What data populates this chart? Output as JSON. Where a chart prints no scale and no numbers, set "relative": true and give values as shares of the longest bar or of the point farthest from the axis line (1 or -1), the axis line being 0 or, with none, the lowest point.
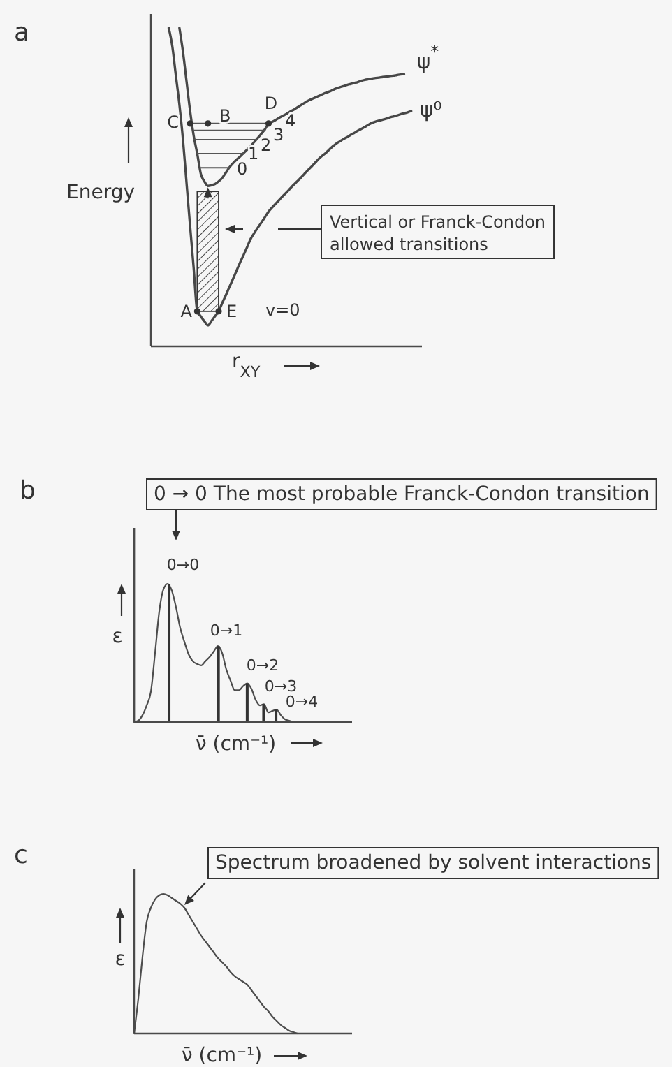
{
  "chart_data": [
    {
      "type": "line",
      "title": "a",
      "xlabel": "r$_{XY}$",
      "ylabel": "Energy",
      "relative": true,
      "categories": [
        null,
        null,
        null,
        null,
        null,
        null,
        null,
        null,
        null,
        null,
        null,
        null,
        null,
        null,
        null,
        null,
        null,
        null,
        null,
        null,
        null,
        null,
        null,
        null,
        null,
        null,
        null,
        null,
        null,
        null,
        null,
        null,
        null,
        null,
        null,
        null,
        null,
        null,
        null,
        null,
        null,
        null,
        null,
        null,
        null,
        null,
        null,
        null,
        null,
        null,
        null,
        null,
        null,
        null,
        null,
        null,
        null,
        null,
        null,
        null,
        null,
        null,
        null,
        null,
        null,
        null,
        null,
        null,
        null,
        null,
        null,
        null,
        null,
        null,
        null,
        null,
        null
      ],
      "series": [
        {
          "name": "ψ$^{*}$",
          "color": "#474747",
          "values": [
            null,
            null,
            null,
            null,
            null,
            null,
            null,
            null,
            1,
            0.925,
            0.832,
            0.739,
            0.662,
            0.605,
            0.542,
            0.518,
            0.504,
            0.506,
            0.51,
            0.518,
            0.529,
            0.545,
            0.562,
            0.575,
            0.586,
            0.596,
            0.607,
            0.618,
            0.629,
            0.642,
            0.655,
            0.668,
            0.682,
            0.7,
            0.705,
            0.711,
            0.718,
            0.724,
            0.73,
            0.737,
            0.743,
            0.75,
            0.757,
            0.764,
            0.771,
            0.776,
            0.781,
            0.786,
            0.791,
            0.796,
            0.8,
            0.805,
            0.81,
            0.814,
            0.817,
            0.821,
            0.824,
            0.827,
            0.83,
            0.834,
            0.837,
            0.839,
            0.841,
            0.843,
            0.844,
            0.846,
            0.847,
            0.849,
            0.85,
            0.852,
            0.854,
            0.855,
            null,
            null,
            null,
            null,
            null
          ]
        },
        {
          "name": "ψ⁰",
          "color": "#474747",
          "values": [
            null,
            null,
            null,
            null,
            null,
            1,
            0.943,
            0.851,
            0.759,
            0.649,
            0.513,
            0.377,
            0.246,
            0.11,
            0.094,
            0.079,
            0.066,
            0.08,
            0.095,
            0.11,
            0.136,
            0.16,
            0.186,
            0.211,
            0.237,
            0.263,
            0.287,
            0.312,
            0.338,
            0.356,
            0.373,
            0.389,
            0.406,
            0.423,
            0.436,
            0.448,
            0.46,
            0.472,
            0.483,
            0.495,
            0.507,
            0.518,
            0.529,
            0.541,
            0.553,
            0.564,
            0.576,
            0.588,
            0.598,
            0.607,
            0.618,
            0.628,
            0.637,
            0.644,
            0.651,
            0.657,
            0.664,
            0.67,
            0.677,
            0.683,
            0.689,
            0.696,
            0.702,
            0.706,
            0.709,
            0.712,
            0.715,
            0.719,
            0.722,
            0.725,
            0.729,
            0.732,
            0.735,
            0.739,
            null,
            null,
            null
          ]
        },
        {
          "color": "#555555",
          "values": [
            null,
            null,
            null,
            null,
            null,
            null,
            null,
            null,
            null,
            null,
            null,
            null,
            null,
            null,
            0.561,
            0.561,
            0.561,
            0.561,
            0.561,
            0.561,
            0.561,
            0.561,
            0.561,
            null,
            null,
            null,
            null,
            null,
            null,
            null,
            null,
            null,
            null,
            null,
            null,
            null,
            null,
            null,
            null,
            null,
            null,
            null,
            null,
            null,
            null,
            null,
            null,
            null,
            null,
            null,
            null,
            null,
            null,
            null,
            null,
            null,
            null,
            null,
            null,
            null,
            null,
            null,
            null,
            null,
            null,
            null,
            null,
            null,
            null,
            null,
            null,
            null,
            null,
            null,
            null,
            null,
            null
          ]
        },
        {
          "color": "#555555",
          "values": [
            null,
            null,
            null,
            null,
            null,
            null,
            null,
            null,
            null,
            null,
            null,
            null,
            null,
            0.605,
            0.605,
            0.605,
            0.605,
            0.605,
            0.605,
            0.605,
            0.605,
            0.605,
            0.605,
            0.605,
            0.605,
            0.605,
            0.605,
            null,
            null,
            null,
            null,
            null,
            null,
            null,
            null,
            null,
            null,
            null,
            null,
            null,
            null,
            null,
            null,
            null,
            null,
            null,
            null,
            null,
            null,
            null,
            null,
            null,
            null,
            null,
            null,
            null,
            null,
            null,
            null,
            null,
            null,
            null,
            null,
            null,
            null,
            null,
            null,
            null,
            null,
            null,
            null,
            null,
            null,
            null,
            null,
            null,
            null
          ]
        },
        {
          "color": "#555555",
          "values": [
            null,
            null,
            null,
            null,
            null,
            null,
            null,
            null,
            null,
            null,
            null,
            null,
            0.649,
            0.649,
            0.649,
            0.649,
            0.649,
            0.649,
            0.649,
            0.649,
            0.649,
            0.649,
            0.649,
            0.649,
            0.649,
            0.649,
            0.649,
            0.649,
            0.649,
            0.649,
            0.649,
            null,
            null,
            null,
            null,
            null,
            null,
            null,
            null,
            null,
            null,
            null,
            null,
            null,
            null,
            null,
            null,
            null,
            null,
            null,
            null,
            null,
            null,
            null,
            null,
            null,
            null,
            null,
            null,
            null,
            null,
            null,
            null,
            null,
            null,
            null,
            null,
            null,
            null,
            null,
            null,
            null,
            null,
            null,
            null,
            null,
            null
          ]
        },
        {
          "color": "#555555",
          "values": [
            null,
            null,
            null,
            null,
            null,
            null,
            null,
            null,
            null,
            null,
            null,
            null,
            0.678,
            0.678,
            0.678,
            0.678,
            0.678,
            0.678,
            0.678,
            0.678,
            0.678,
            0.678,
            0.678,
            0.678,
            0.678,
            0.678,
            0.678,
            0.678,
            0.678,
            0.678,
            0.678,
            0.678,
            0.678,
            null,
            null,
            null,
            null,
            null,
            null,
            null,
            null,
            null,
            null,
            null,
            null,
            null,
            null,
            null,
            null,
            null,
            null,
            null,
            null,
            null,
            null,
            null,
            null,
            null,
            null,
            null,
            null,
            null,
            null,
            null,
            null,
            null,
            null,
            null,
            null,
            null,
            null,
            null,
            null,
            null,
            null,
            null,
            null
          ]
        },
        {
          "color": "#555555",
          "values": [
            null,
            null,
            null,
            null,
            null,
            null,
            null,
            null,
            null,
            null,
            null,
            0.7,
            0.7,
            0.7,
            0.7,
            0.7,
            0.7,
            0.7,
            0.7,
            0.7,
            0.7,
            0.7,
            0.7,
            0.7,
            0.7,
            0.7,
            0.7,
            0.7,
            0.7,
            0.7,
            0.7,
            0.7,
            0.7,
            0.7,
            null,
            null,
            null,
            null,
            null,
            null,
            null,
            null,
            null,
            null,
            null,
            null,
            null,
            null,
            null,
            null,
            null,
            null,
            null,
            null,
            null,
            null,
            null,
            null,
            null,
            null,
            null,
            null,
            null,
            null,
            null,
            null,
            null,
            null,
            null,
            null,
            null,
            null,
            null,
            null,
            null,
            null,
            null
          ]
        },
        {
          "marker": "circle",
          "color": "#333333",
          "values": [
            null,
            null,
            null,
            null,
            null,
            null,
            null,
            null,
            null,
            null,
            null,
            0.7,
            null,
            0.11,
            null,
            null,
            0.7,
            null,
            null,
            0.11,
            null,
            null,
            null,
            null,
            null,
            null,
            null,
            null,
            null,
            null,
            null,
            null,
            null,
            0.7,
            null,
            null,
            null,
            null,
            null,
            null,
            null,
            null,
            null,
            null,
            null,
            null,
            null,
            null,
            null,
            null,
            null,
            null,
            null,
            null,
            null,
            null,
            null,
            null,
            null,
            null,
            null,
            null,
            null,
            null,
            null,
            null,
            null,
            null,
            null,
            null,
            null,
            null,
            null,
            null,
            null,
            null,
            null
          ]
        }
      ],
      "annotations": [
        "Vertical or Franck-Condon allowed transitions",
        "v=0",
        "C",
        "A",
        "B",
        "E",
        "D",
        "0",
        "1",
        "2",
        "3",
        "4"
      ]
    },
    {
      "type": "line",
      "title": "b",
      "xlabel": "ν̄ (cm⁻¹)",
      "ylabel": "ε",
      "relative": true,
      "categories": [
        null,
        null,
        null,
        null,
        null,
        null,
        null,
        null,
        null,
        null,
        null,
        null,
        null,
        null,
        null,
        null,
        null,
        null,
        null,
        null,
        null,
        null,
        null,
        null,
        null,
        null,
        null,
        null,
        null,
        null,
        null,
        null,
        null,
        null,
        null,
        null,
        null,
        null,
        null,
        null,
        null,
        null,
        null,
        null,
        null,
        null,
        null,
        null,
        null,
        null,
        null,
        null,
        null
      ],
      "series": [
        {
          "color": "#4d4d4d",
          "values": [
            0,
            0.01,
            0.05,
            0.12,
            0.22,
            0.5,
            0.8,
            0.96,
            1,
            0.95,
            0.83,
            0.68,
            0.58,
            0.49,
            0.44,
            0.42,
            0.41,
            0.44,
            0.47,
            0.51,
            0.55,
            0.5,
            0.38,
            0.3,
            0.23,
            0.23,
            0.26,
            0.28,
            0.24,
            0.16,
            0.12,
            0.13,
            0.07,
            0.08,
            0.09,
            0.05,
            0.02,
            0.01,
            0,
            null,
            null,
            null,
            null,
            null,
            null,
            null,
            null,
            null,
            null,
            null,
            null,
            null,
            null
          ]
        }
      ],
      "annotations": [
        "0 → 0 The most probable Franck-Condon transition"
      ]
    },
    {
      "type": "bar",
      "relative": true,
      "categories": [
        null,
        null,
        null,
        null,
        null,
        null,
        null,
        null,
        null,
        null,
        null,
        null,
        null,
        null,
        null,
        null,
        null,
        null,
        null,
        null,
        null,
        null,
        null,
        null,
        null,
        null,
        null,
        null,
        null,
        null,
        null,
        null,
        null,
        null,
        null,
        null,
        null,
        null,
        null,
        null,
        null,
        null,
        null,
        null,
        null,
        null,
        null,
        null,
        null,
        null,
        null,
        null,
        null
      ],
      "series": [
        {
          "color": "#333333",
          "values": [
            null,
            null,
            null,
            null,
            null,
            null,
            null,
            null,
            1,
            null,
            null,
            null,
            null,
            null,
            null,
            null,
            null,
            null,
            null,
            null,
            0.55,
            null,
            null,
            null,
            null,
            null,
            null,
            0.28,
            null,
            null,
            null,
            0.13,
            null,
            null,
            0.09,
            null,
            null,
            null,
            null,
            null,
            null,
            null,
            null,
            null,
            null,
            null,
            null,
            null,
            null,
            null,
            null,
            null,
            null
          ]
        }
      ],
      "annotations": [
        "0→0",
        "0→1",
        "0→2",
        "0→3",
        "0→4"
      ]
    },
    {
      "type": "line",
      "title": "c",
      "xlabel": "ν̄ (cm⁻¹)",
      "ylabel": "ε",
      "relative": true,
      "categories": [
        null,
        null,
        null,
        null,
        null,
        null,
        null,
        null,
        null,
        null,
        null,
        null,
        null,
        null,
        null,
        null,
        null,
        null,
        null,
        null,
        null,
        null,
        null,
        null,
        null,
        null,
        null,
        null,
        null,
        null,
        null,
        null,
        null,
        null,
        null,
        null,
        null,
        null,
        null,
        null,
        null,
        null,
        null,
        null,
        null,
        null,
        null,
        null,
        null,
        null,
        null,
        null,
        null
      ],
      "series": [
        {
          "color": "#4d4d4d",
          "values": [
            0,
            0.25,
            0.55,
            0.8,
            0.9,
            0.96,
            0.99,
            1,
            0.99,
            0.97,
            0.95,
            0.93,
            0.9,
            0.85,
            0.8,
            0.75,
            0.7,
            0.66,
            0.62,
            0.58,
            0.54,
            0.51,
            0.48,
            0.44,
            0.41,
            0.39,
            0.37,
            0.35,
            0.31,
            0.27,
            0.23,
            0.19,
            0.16,
            0.12,
            0.09,
            0.06,
            0.04,
            0.02,
            0.01,
            0,
            null,
            null,
            null,
            null,
            null,
            null,
            null,
            null,
            null,
            null,
            null,
            null,
            null
          ]
        }
      ],
      "annotations": [
        "Spectrum broadened by solvent interactions"
      ]
    }
  ]
}
